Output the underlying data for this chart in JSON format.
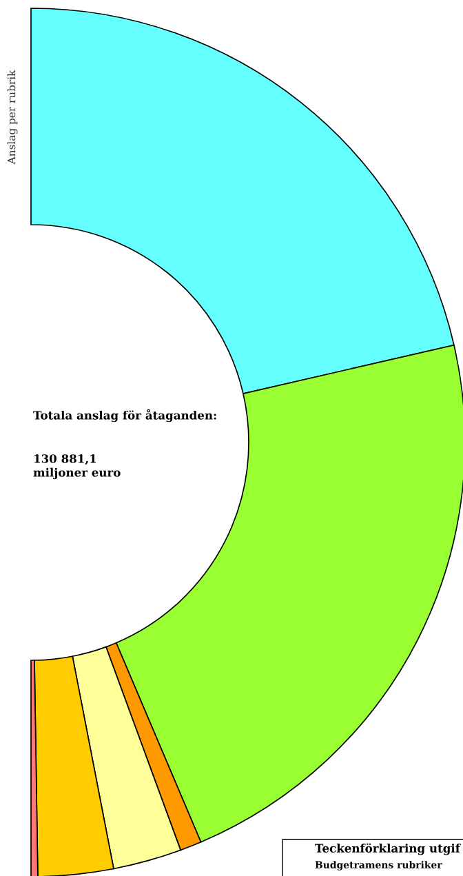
{
  "chart_data": {
    "type": "donut",
    "title": "Totala anslag för åtaganden:",
    "subtitle": "130 881,1\nmiljoner euro",
    "ylabel": "Anslag per rubrik",
    "legend_title": "Teckenförklaring utgif",
    "annotations": [
      "Budgetramens rubriker"
    ],
    "categories": [
      null,
      null,
      null,
      null,
      null,
      null
    ],
    "values": [
      42.8,
      44.4,
      1.6,
      5.1,
      5.6,
      0.5
    ],
    "colors": [
      "#66ffff",
      "#99ff33",
      "#ff9900",
      "#ffff99",
      "#ffcc00",
      "#ff7777"
    ]
  }
}
